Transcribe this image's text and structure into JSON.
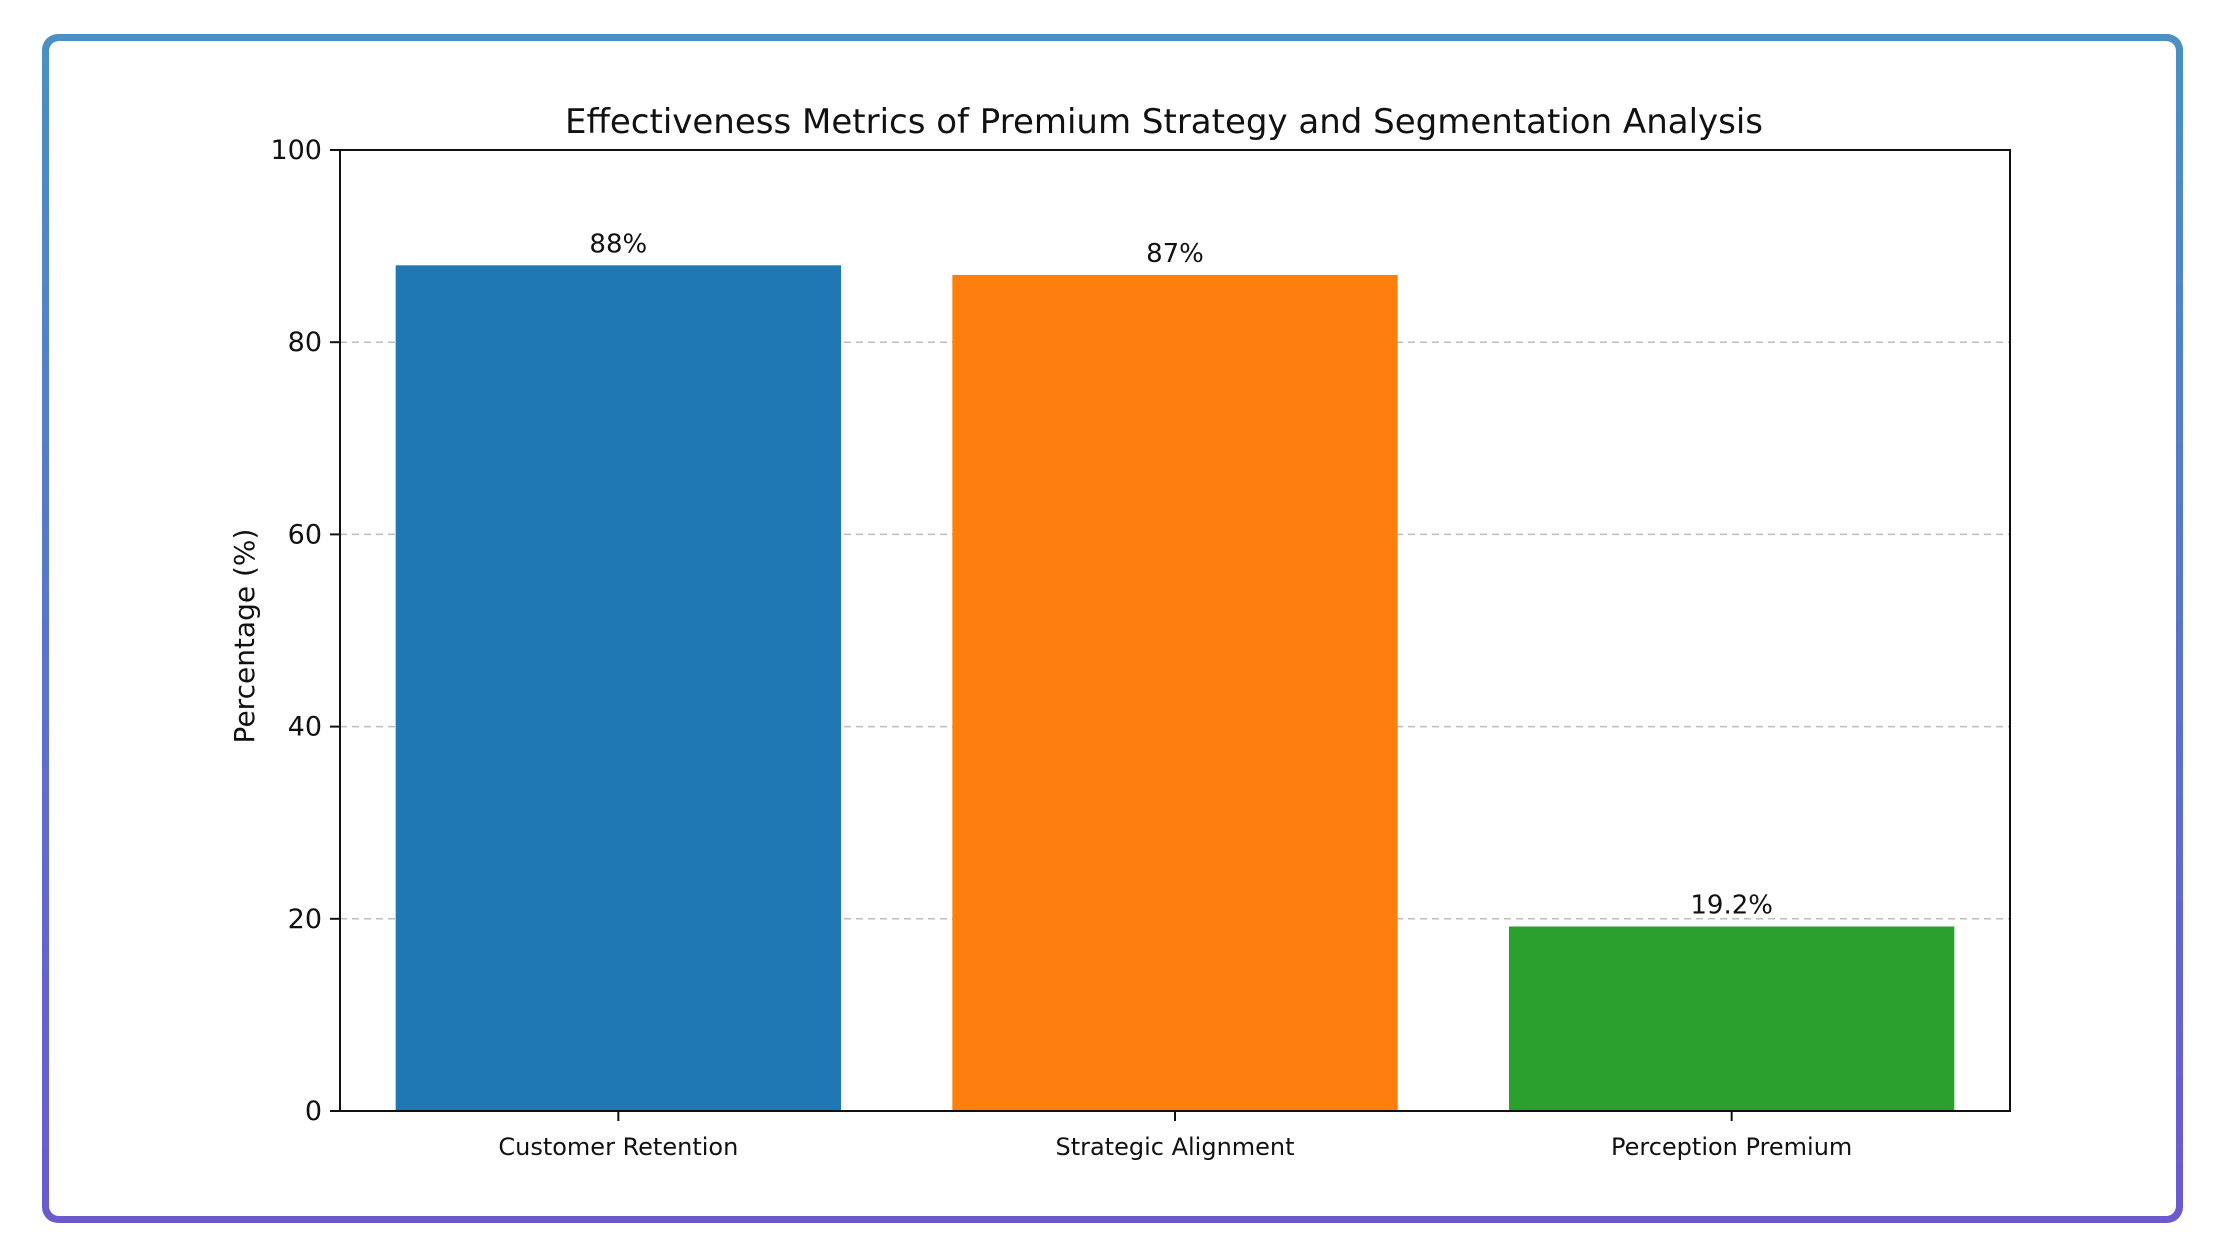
{
  "chart_data": {
    "type": "bar",
    "title": "Effectiveness Metrics of Premium Strategy and Segmentation Analysis",
    "xlabel": "",
    "ylabel": "Percentage (%)",
    "ylim": [
      0,
      100
    ],
    "yticks": [
      0,
      20,
      40,
      60,
      80,
      100
    ],
    "grid": "y-dashed",
    "categories": [
      "Customer Retention",
      "Strategic Alignment",
      "Perception Premium"
    ],
    "values": [
      88,
      87,
      19.2
    ],
    "data_labels": [
      "88%",
      "87%",
      "19.2%"
    ],
    "colors": [
      "#1f77b4",
      "#ff7f0e",
      "#2ca02c"
    ]
  }
}
